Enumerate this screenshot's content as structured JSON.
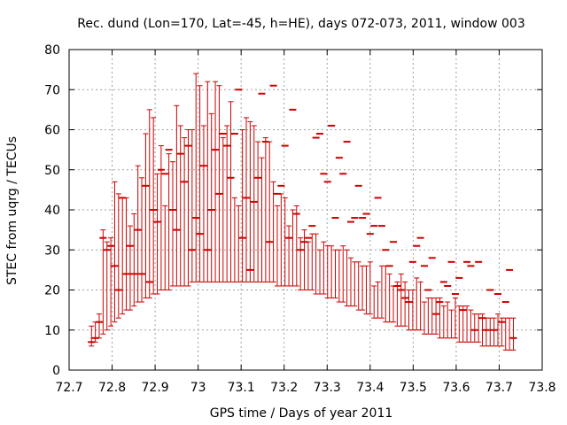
{
  "chart_data": {
    "type": "scatter",
    "title": "Rec. dund (Lon=170, Lat=-45, h=HE), days 072-073, 2011, window 003",
    "xlabel": "GPS time / Days of year 2011",
    "ylabel": "STEC from uqrg / TECUs",
    "xlim": [
      72.7,
      73.8
    ],
    "ylim": [
      0,
      80
    ],
    "xticks": [
      "72.7",
      "72.8",
      "72.9",
      "73",
      "73.1",
      "73.2",
      "73.3",
      "73.4",
      "73.5",
      "73.6",
      "73.7",
      "73.8"
    ],
    "yticks": [
      "0",
      "10",
      "20",
      "30",
      "40",
      "50",
      "60",
      "70",
      "80"
    ],
    "grid": true,
    "series_color": "#cc0000",
    "x": [
      72.752,
      72.761,
      72.77,
      72.779,
      72.788,
      72.797,
      72.806,
      72.815,
      72.824,
      72.833,
      72.842,
      72.851,
      72.86,
      72.869,
      72.878,
      72.887,
      72.896,
      72.905,
      72.914,
      72.923,
      72.932,
      72.941,
      72.95,
      72.959,
      72.968,
      72.977,
      72.986,
      72.995,
      73.004,
      73.013,
      73.022,
      73.031,
      73.04,
      73.049,
      73.058,
      73.067,
      73.076,
      73.085,
      73.094,
      73.103,
      73.112,
      73.121,
      73.13,
      73.139,
      73.148,
      73.157,
      73.166,
      73.175,
      73.184,
      73.193,
      73.202,
      73.211,
      73.22,
      73.229,
      73.238,
      73.247,
      73.256,
      73.265,
      73.274,
      73.283,
      73.292,
      73.301,
      73.31,
      73.319,
      73.328,
      73.337,
      73.346,
      73.355,
      73.364,
      73.373,
      73.382,
      73.391,
      73.4,
      73.409,
      73.418,
      73.427,
      73.436,
      73.445,
      73.454,
      73.463,
      73.472,
      73.481,
      73.49,
      73.499,
      73.508,
      73.517,
      73.526,
      73.535,
      73.544,
      73.553,
      73.562,
      73.571,
      73.58,
      73.589,
      73.598,
      73.607,
      73.616,
      73.625,
      73.634,
      73.643,
      73.652,
      73.661,
      73.67,
      73.679,
      73.688,
      73.697,
      73.706,
      73.715,
      73.724,
      73.733
    ],
    "y": [
      7,
      8,
      12,
      33,
      30,
      31,
      26,
      20,
      43,
      24,
      31,
      24,
      35,
      24,
      46,
      22,
      40,
      37,
      50,
      49,
      55,
      40,
      35,
      54,
      47,
      56,
      30,
      38,
      34,
      51,
      30,
      40,
      55,
      44,
      59,
      56,
      48,
      59,
      70,
      33,
      43,
      25,
      42,
      48,
      69,
      57,
      32,
      71,
      44,
      46,
      56,
      33,
      65,
      39,
      30,
      32,
      33,
      36,
      58,
      59,
      49,
      47,
      61,
      38,
      53,
      49,
      57,
      37,
      38,
      46,
      38,
      39,
      34,
      36,
      43,
      36,
      30,
      26,
      32,
      21,
      20,
      18,
      17,
      27,
      31,
      33,
      26,
      20,
      28,
      14,
      17,
      22,
      21,
      27,
      19,
      23,
      15,
      27,
      26,
      10,
      27,
      13,
      10,
      20,
      10,
      19,
      12,
      17,
      25,
      8
    ],
    "error_high": [
      11,
      12,
      14,
      35,
      32,
      33,
      47,
      44,
      43,
      43,
      36,
      39,
      51,
      48,
      59,
      65,
      63,
      49,
      56,
      41,
      54,
      52,
      66,
      61,
      58,
      60,
      60,
      74,
      71,
      61,
      72,
      64,
      72,
      71,
      58,
      61,
      67,
      43,
      41,
      60,
      63,
      62,
      61,
      57,
      53,
      58,
      57,
      47,
      41,
      44,
      43,
      36,
      40,
      41,
      33,
      35,
      32,
      34,
      34,
      30,
      32,
      31,
      31,
      30,
      30,
      31,
      30,
      28,
      27,
      27,
      26,
      26,
      27,
      21,
      22,
      26,
      26,
      24,
      21,
      22,
      24,
      22,
      20,
      20,
      23,
      22,
      17,
      18,
      18,
      18,
      18,
      16,
      17,
      15,
      18,
      16,
      16,
      16,
      15,
      14,
      14,
      14,
      13,
      13,
      13,
      14,
      13,
      13,
      13,
      13
    ],
    "error_low": [
      6,
      7,
      8,
      9,
      10,
      11,
      12,
      13,
      14,
      15,
      15,
      16,
      17,
      17,
      18,
      18,
      19,
      19,
      20,
      20,
      20,
      21,
      21,
      21,
      21,
      21,
      22,
      22,
      22,
      22,
      22,
      22,
      22,
      22,
      22,
      22,
      22,
      22,
      22,
      22,
      22,
      22,
      22,
      22,
      22,
      22,
      22,
      22,
      21,
      21,
      21,
      21,
      21,
      21,
      20,
      20,
      20,
      20,
      19,
      19,
      19,
      18,
      18,
      18,
      17,
      17,
      16,
      16,
      16,
      15,
      15,
      14,
      14,
      13,
      13,
      13,
      12,
      12,
      12,
      11,
      11,
      11,
      10,
      10,
      10,
      10,
      9,
      9,
      9,
      9,
      8,
      8,
      8,
      8,
      8,
      7,
      7,
      7,
      7,
      7,
      7,
      6,
      6,
      6,
      6,
      6,
      6,
      5,
      5,
      5
    ]
  }
}
